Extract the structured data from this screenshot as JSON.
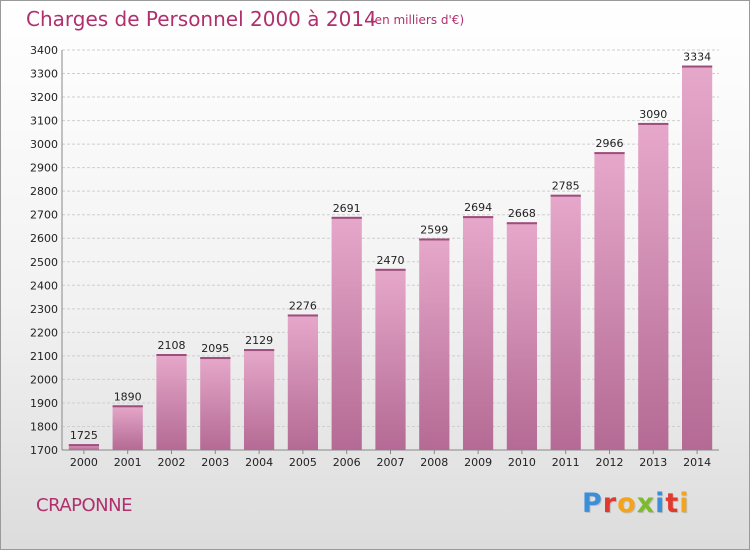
{
  "chart_data": {
    "type": "bar",
    "title": "Charges de Personnel 2000 à 2014",
    "subtitle": "(en milliers d'€)",
    "categories": [
      "2000",
      "2001",
      "2002",
      "2003",
      "2004",
      "2005",
      "2006",
      "2007",
      "2008",
      "2009",
      "2010",
      "2011",
      "2012",
      "2013",
      "2014"
    ],
    "values": [
      1725,
      1890,
      2108,
      2095,
      2129,
      2276,
      2691,
      2470,
      2599,
      2694,
      2668,
      2785,
      2966,
      3090,
      3334
    ],
    "ylim": [
      1700,
      3400
    ],
    "yticks": [
      1700,
      1800,
      1900,
      2000,
      2100,
      2200,
      2300,
      2400,
      2500,
      2600,
      2700,
      2800,
      2900,
      3000,
      3100,
      3200,
      3300,
      3400
    ],
    "grid": true,
    "bar_color": "#d98cb6"
  },
  "footer": {
    "city": "CRAPONNE",
    "logo": [
      {
        "char": "P",
        "color": "#3a8fd8"
      },
      {
        "char": "r",
        "color": "#e03a2f"
      },
      {
        "char": "o",
        "color": "#f4a41c"
      },
      {
        "char": "x",
        "color": "#7cba2f"
      },
      {
        "char": "i",
        "color": "#3a8fd8"
      },
      {
        "char": "t",
        "color": "#e03a2f"
      },
      {
        "char": "i",
        "color": "#f4a41c"
      }
    ]
  }
}
